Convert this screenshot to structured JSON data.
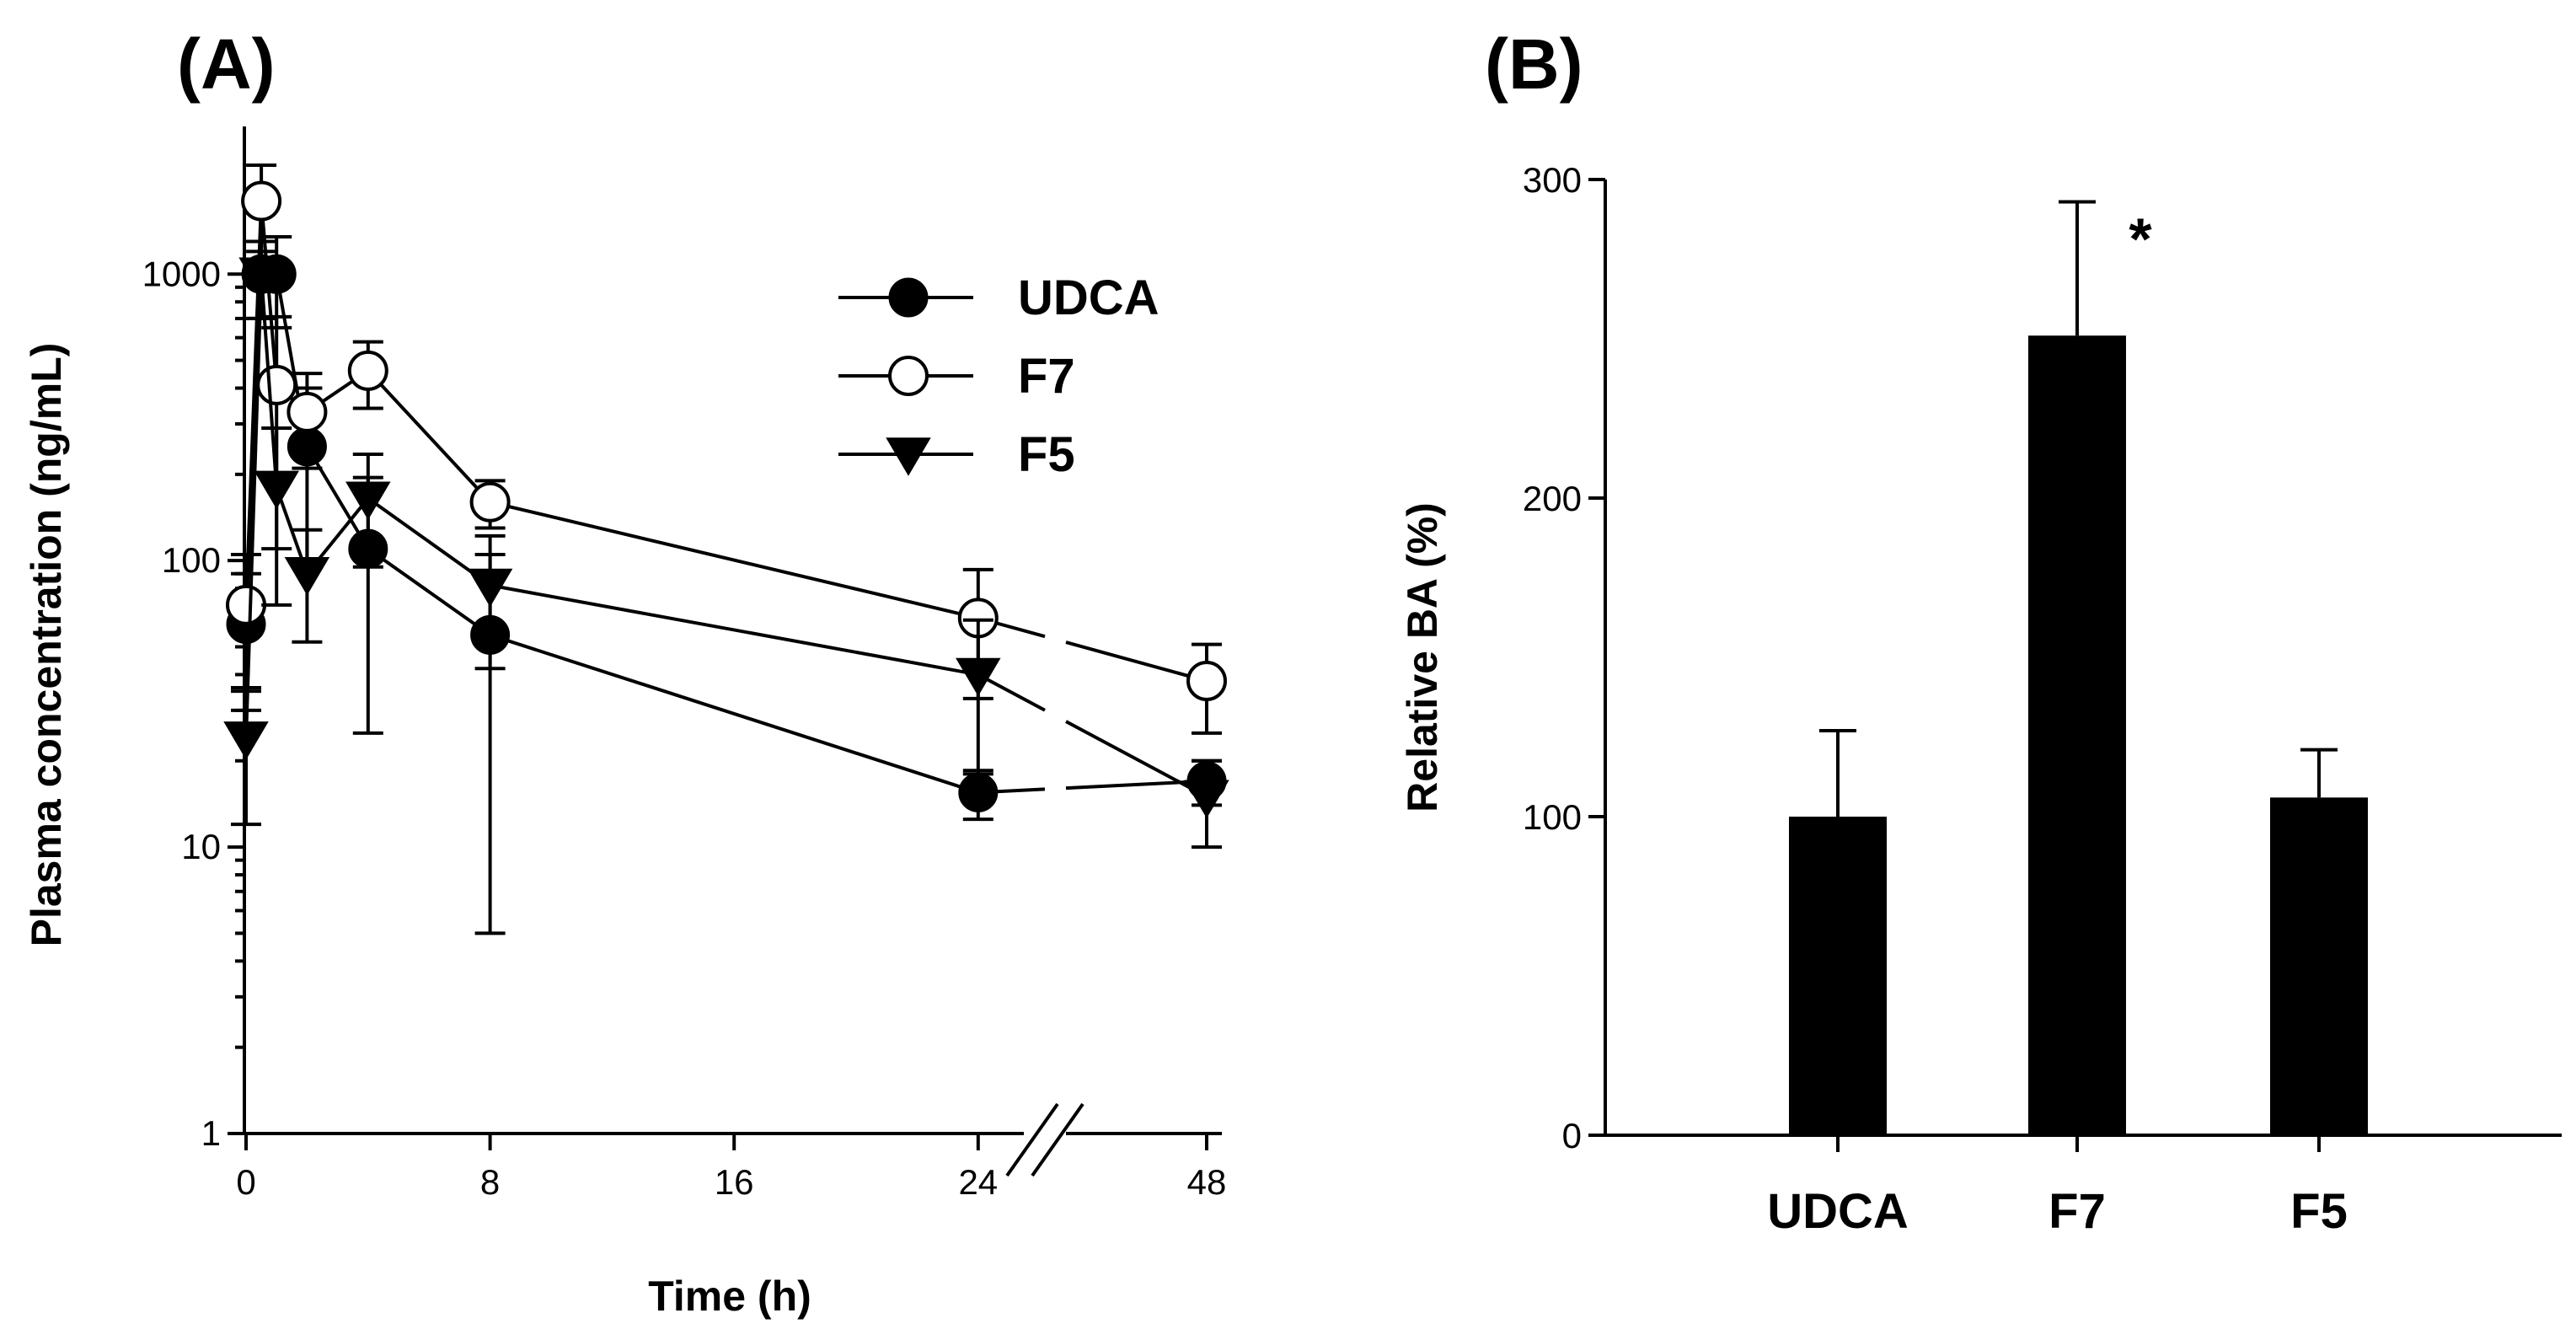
{
  "chart_data": [
    {
      "type": "line",
      "panel_label": "(A)",
      "xlabel": "Time (h)",
      "ylabel": "Plasma concentration  (ng/mL)",
      "yscale": "log",
      "ylim": [
        1,
        2500
      ],
      "yticks": [
        1,
        10,
        100,
        1000
      ],
      "ytick_labels": [
        "1",
        "10",
        "100",
        "1000"
      ],
      "xticks": [
        0,
        8,
        16,
        24,
        48
      ],
      "xtick_labels": [
        "0",
        "8",
        "16",
        "24",
        "48"
      ],
      "x_axis_break": "between 24 and 48",
      "series": [
        {
          "name": "UDCA",
          "marker": "filled-circle",
          "x": [
            0,
            0.5,
            1,
            2,
            4,
            8,
            24,
            48
          ],
          "y": [
            60,
            1000,
            1000,
            250,
            110,
            55,
            15.5,
            17
          ],
          "err": [
            30,
            300,
            350,
            150,
            85,
            50,
            3,
            3
          ]
        },
        {
          "name": "F7",
          "marker": "open-circle",
          "x": [
            0,
            0.5,
            1,
            2,
            4,
            8,
            24,
            48
          ],
          "y": [
            70,
            1800,
            410,
            330,
            460,
            160,
            63,
            38
          ],
          "err": [
            35,
            600,
            300,
            120,
            120,
            30,
            30,
            13
          ]
        },
        {
          "name": "F5",
          "marker": "filled-triangle-down",
          "x": [
            0,
            0.5,
            1,
            2,
            4,
            8,
            24,
            48
          ],
          "y": [
            24,
            1000,
            180,
            90,
            165,
            82,
            40,
            15
          ],
          "err": [
            12,
            300,
            110,
            38,
            70,
            40,
            22,
            5
          ]
        }
      ]
    },
    {
      "type": "bar",
      "panel_label": "(B)",
      "xlabel": "",
      "ylabel": "Relative BA (%)",
      "ylim": [
        0,
        300
      ],
      "yticks": [
        0,
        100,
        200,
        300
      ],
      "ytick_labels": [
        "0",
        "100",
        "200",
        "300"
      ],
      "categories": [
        "UDCA",
        "F7",
        "F5"
      ],
      "values": [
        100,
        251,
        106
      ],
      "err": [
        27,
        42,
        15
      ],
      "annotations": [
        {
          "category": "F7",
          "text": "*"
        }
      ]
    }
  ]
}
